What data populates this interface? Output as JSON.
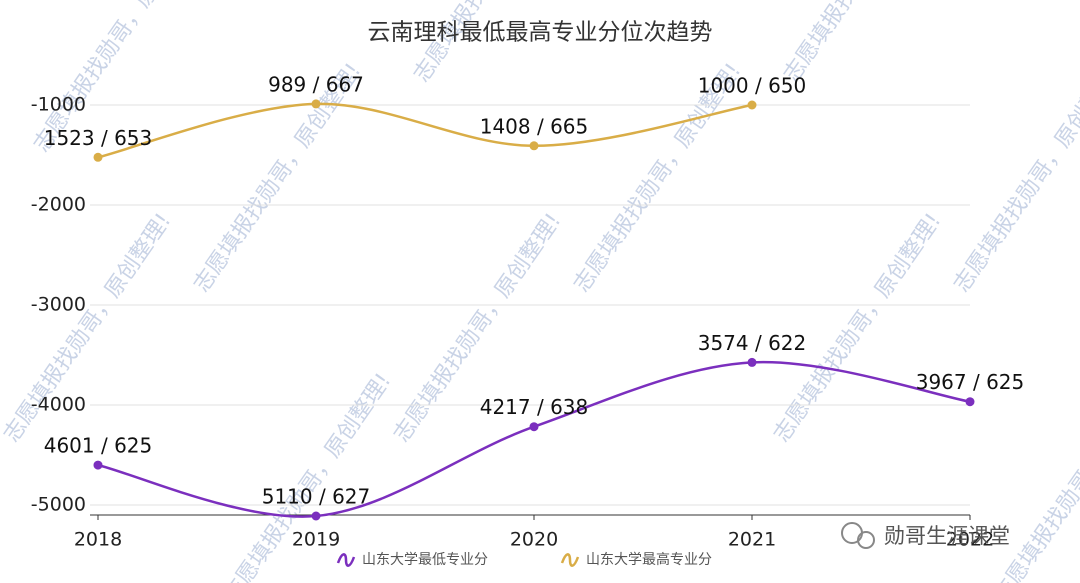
{
  "chart_data": {
    "type": "line",
    "title": "云南理科最低最高专业分位次趋势",
    "categories": [
      "2018",
      "2019",
      "2020",
      "2021",
      "2022"
    ],
    "series": [
      {
        "name": "山东大学最低专业分",
        "color": "#7b2fbe",
        "values": [
          -4601,
          -5110,
          -4217,
          -3574,
          -3967
        ],
        "value_labels": [
          "4601 / 625",
          "5110 / 627",
          "4217 / 638",
          "3574 / 622",
          "3967 / 625"
        ]
      },
      {
        "name": "山东大学最高专业分",
        "color": "#d9ad47",
        "values": [
          -1523,
          -989,
          -1408,
          -1000,
          null
        ],
        "value_labels": [
          "1523 / 653",
          "989 / 667",
          "1408 / 665",
          "1000 / 650",
          null
        ]
      }
    ],
    "ylim": [
      -5100,
      -500
    ],
    "yticks": [
      -1000,
      -2000,
      -3000,
      -4000,
      -5000
    ],
    "grid": true,
    "smooth": true,
    "legend": "bottom",
    "watermark": "志愿填报找勋哥，原创整理!",
    "brand": "勋哥生涯课堂"
  }
}
